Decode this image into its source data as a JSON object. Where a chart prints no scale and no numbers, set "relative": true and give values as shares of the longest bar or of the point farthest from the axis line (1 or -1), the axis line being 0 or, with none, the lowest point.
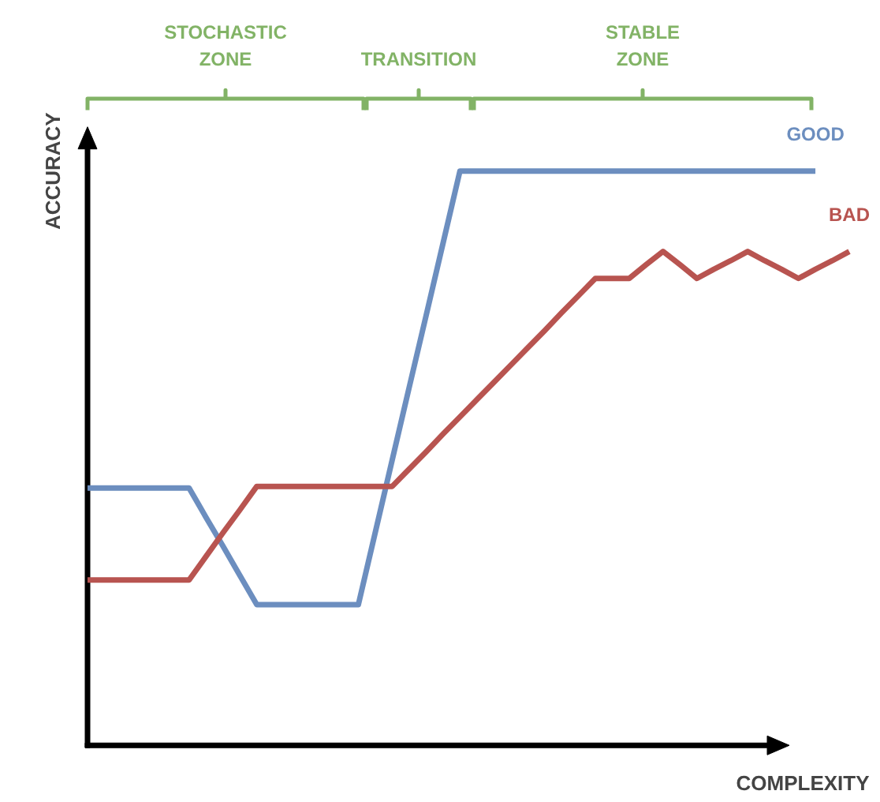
{
  "chart_data": {
    "type": "line",
    "relative": true,
    "xlabel": "COMPLEXITY",
    "ylabel": "ACCURACY",
    "tick_labels": false,
    "grid": false,
    "legend": false,
    "marker": "none",
    "line_style": "solid",
    "categories": [
      null,
      null,
      null,
      null,
      null,
      null,
      null,
      null,
      null,
      null,
      null,
      null,
      null,
      null,
      null,
      null,
      null,
      null,
      null,
      null,
      null,
      null,
      null,
      null,
      null,
      null,
      null,
      null,
      null,
      null,
      null,
      null,
      null,
      null,
      null,
      null,
      null,
      null,
      null,
      null,
      null,
      null,
      null,
      null,
      null,
      null
    ],
    "series": [
      {
        "name": "GOOD",
        "color": "#6c8ebf",
        "values": [
          0.448,
          0.448,
          0.448,
          0.448,
          0.448,
          0.448,
          0.448,
          0.397,
          0.347,
          0.296,
          0.245,
          0.245,
          0.245,
          0.245,
          0.245,
          0.245,
          0.245,
          0.371,
          0.497,
          0.623,
          0.748,
          0.874,
          1,
          1,
          1,
          1,
          1,
          1,
          1,
          1,
          1,
          1,
          1,
          1,
          1,
          1,
          1,
          1,
          1,
          1,
          1,
          1,
          1,
          1,
          null,
          null
        ]
      },
      {
        "name": "BAD",
        "color": "#b85450",
        "values": [
          0.288,
          0.288,
          0.288,
          0.288,
          0.288,
          0.288,
          0.288,
          0.329,
          0.37,
          0.41,
          0.451,
          0.451,
          0.451,
          0.451,
          0.451,
          0.451,
          0.451,
          0.451,
          0.451,
          0.481,
          0.511,
          0.542,
          0.572,
          0.602,
          0.632,
          0.662,
          0.692,
          0.722,
          0.753,
          0.783,
          0.813,
          0.813,
          0.813,
          0.837,
          0.86,
          0.837,
          0.813,
          0.829,
          0.844,
          0.86,
          0.844,
          0.829,
          0.813,
          0.829,
          0.844,
          0.86
        ]
      }
    ],
    "annotations": [
      "STOCHASTIC\nZONE",
      "TRANSITION",
      "STABLE\nZONE"
    ]
  }
}
